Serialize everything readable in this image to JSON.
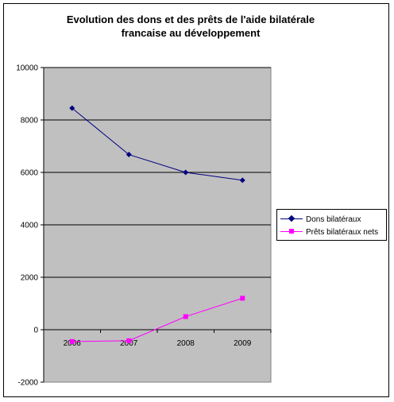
{
  "chart_data": {
    "type": "line",
    "title": "Evolution des dons et des prêts  de l'aide bilatérale francaise au développement",
    "title_lines": [
      "Evolution des dons et des prêts  de l'aide bilatérale",
      "francaise au développement"
    ],
    "categories": [
      "2006",
      "2007",
      "2008",
      "2009"
    ],
    "ylim": [
      -2000,
      10000
    ],
    "yticks": [
      -2000,
      0,
      2000,
      4000,
      6000,
      8000,
      10000
    ],
    "ytick_labels": [
      "-2000",
      "0",
      "2000",
      "4000",
      "6000",
      "8000",
      "10000"
    ],
    "grid": true,
    "legend_position": "right",
    "plot_background": "#c0c0c0",
    "series": [
      {
        "name": "Dons bilatéraux",
        "values": [
          8450,
          6680,
          6000,
          5700
        ],
        "color": "#000080",
        "marker": "diamond"
      },
      {
        "name": "Prêts bilatéraux nets",
        "values": [
          -450,
          -420,
          500,
          1200
        ],
        "color": "#ff00ff",
        "marker": "square"
      }
    ]
  }
}
